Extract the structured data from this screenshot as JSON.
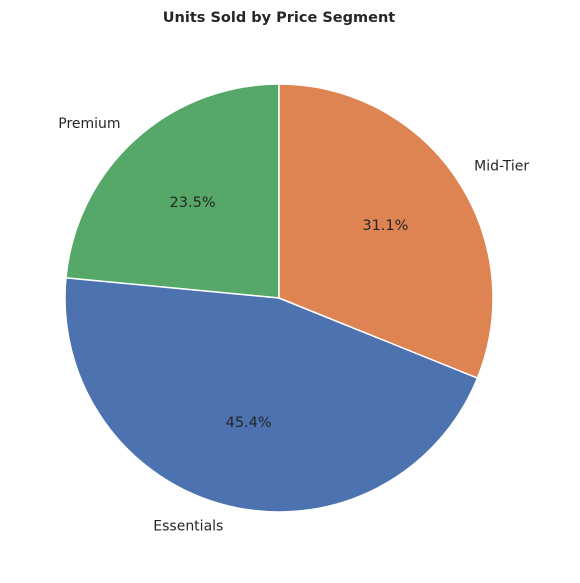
{
  "chart_data": {
    "type": "pie",
    "title": "Units Sold by Price Segment",
    "start_angle_deg": 90,
    "direction": "counterclockwise",
    "slices": [
      {
        "label": "Premium",
        "value": 23.5,
        "pct_label": "23.5%",
        "color": "#55a868"
      },
      {
        "label": "Essentials",
        "value": 45.4,
        "pct_label": "45.4%",
        "color": "#4c72b0"
      },
      {
        "label": "Mid-Tier",
        "value": 31.1,
        "pct_label": "31.1%",
        "color": "#dd8452"
      }
    ],
    "edge_color": "#ffffff"
  }
}
